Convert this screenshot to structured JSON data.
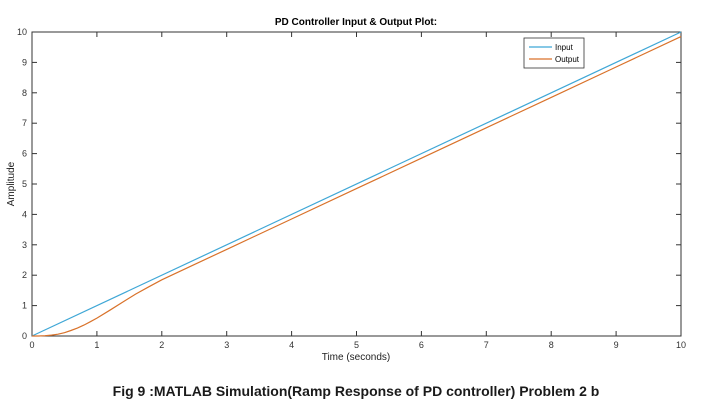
{
  "chart_data": {
    "type": "line",
    "title": "PD Controller Input & Output  Plot:",
    "xlabel": "Time (seconds)",
    "ylabel": "Amplitude",
    "xlim": [
      0,
      10
    ],
    "ylim": [
      0,
      10
    ],
    "xticks": [
      "0",
      "1",
      "2",
      "3",
      "4",
      "5",
      "6",
      "7",
      "8",
      "9",
      "10"
    ],
    "yticks": [
      "0",
      "1",
      "2",
      "3",
      "4",
      "5",
      "6",
      "7",
      "8",
      "9",
      "10"
    ],
    "grid": false,
    "legend_position": "top-right",
    "series": [
      {
        "name": "Input",
        "color": "#3fa7d6",
        "x": [
          0,
          10
        ],
        "y": [
          0,
          10
        ]
      },
      {
        "name": "Output",
        "color": "#d9722a",
        "x": [
          0,
          0.1,
          0.2,
          0.3,
          0.4,
          0.5,
          0.6,
          0.7,
          0.8,
          0.9,
          1.0,
          1.2,
          1.4,
          1.6,
          1.8,
          2.0,
          2.5,
          3,
          4,
          5,
          6,
          7,
          8,
          9,
          10
        ],
        "y": [
          0,
          0.0,
          0.01,
          0.03,
          0.06,
          0.11,
          0.18,
          0.26,
          0.36,
          0.47,
          0.59,
          0.85,
          1.12,
          1.38,
          1.62,
          1.85,
          2.35,
          2.85,
          3.85,
          4.85,
          5.85,
          6.85,
          7.85,
          8.85,
          9.85
        ]
      }
    ]
  },
  "caption": "Fig 9 :MATLAB Simulation(Ramp Response of PD controller) Problem 2 b"
}
